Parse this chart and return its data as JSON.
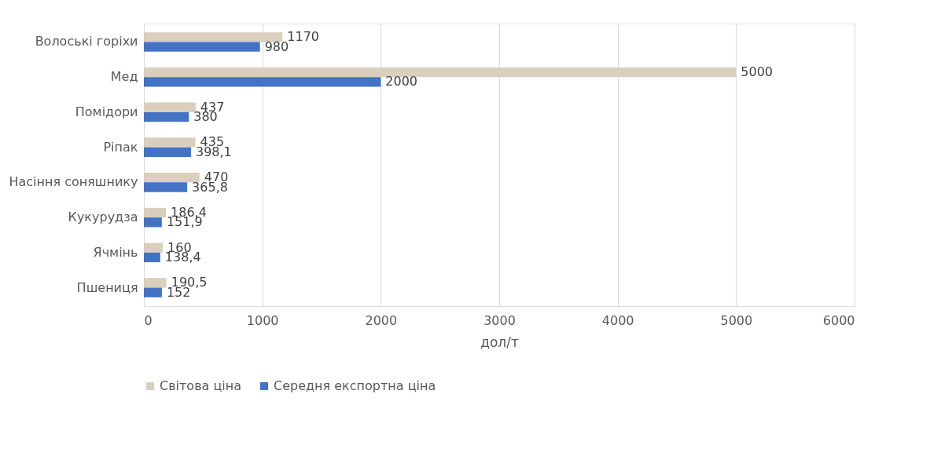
{
  "chart_data": {
    "type": "bar",
    "orientation": "horizontal",
    "xlabel": "дол/т",
    "categories": [
      "Волоські горіхи",
      "Мед",
      "Помідори",
      "Ріпак",
      "Насіння соняшнику",
      "Кукурудза",
      "Ячмінь",
      "Пшениця"
    ],
    "series": [
      {
        "name": "Світова ціна",
        "color": "#d9cfbc",
        "values": [
          1170,
          5000,
          437,
          435,
          470,
          186.4,
          160,
          190.5
        ],
        "value_labels": [
          "1170",
          "5000",
          "437",
          "435",
          "470",
          "186,4",
          "160",
          "190,5"
        ]
      },
      {
        "name": "Середня експортна ціна",
        "color": "#4472c4",
        "values": [
          980,
          2000,
          380,
          398.1,
          365.8,
          151.9,
          138.4,
          152
        ],
        "value_labels": [
          "980",
          "2000",
          "380",
          "398,1",
          "365,8",
          "151,9",
          "138,4",
          "152"
        ]
      }
    ],
    "xlim": [
      0,
      6000
    ],
    "xticks": [
      0,
      1000,
      2000,
      3000,
      4000,
      5000,
      6000
    ],
    "grid": "x",
    "legend": "bottom"
  }
}
